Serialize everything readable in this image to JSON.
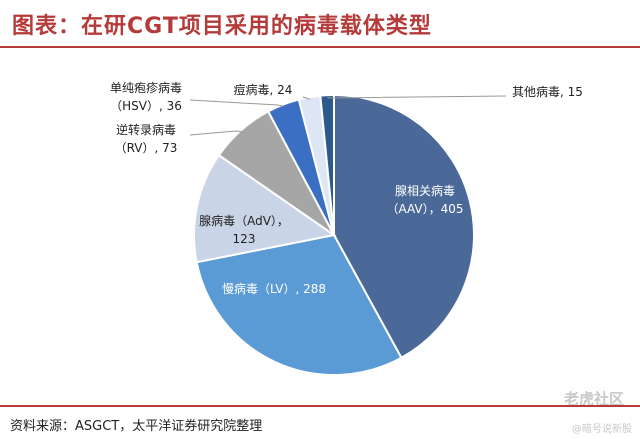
{
  "title": "图表：在研CGT项目采用的病毒载体类型",
  "source": "资料来源：ASGCT，太平洋证券研究院整理",
  "watermark": "老虎社区",
  "watermark_sub": "@暗号说新股",
  "chart_data": {
    "type": "pie",
    "title": "图表：在研CGT项目采用的病毒载体类型",
    "start": "12 o'clock, clockwise",
    "slices": [
      {
        "label": "腺相关病毒（AAV），405",
        "value": 405,
        "color": "#4a6898",
        "label_color": "#ffffff",
        "label_lines": [
          "腺相关病毒",
          "（AAV），405"
        ]
      },
      {
        "label": "慢病毒（LV）, 288",
        "value": 288,
        "color": "#5b9bd5",
        "label_color": "#ffffff",
        "label_lines": [
          "慢病毒（LV）, 288"
        ]
      },
      {
        "label": "腺病毒（AdV），123",
        "value": 123,
        "color": "#c9d4e6",
        "label_color": "#222222",
        "label_lines": [
          "腺病毒（AdV），",
          "123"
        ]
      },
      {
        "label": "逆转录病毒（RV）, 73",
        "value": 73,
        "color": "#a6a6a6",
        "label_color": "#222222",
        "label_lines": [
          "逆转录病毒",
          "（RV）, 73"
        ]
      },
      {
        "label": "单纯疱疹病毒（HSV）, 36",
        "value": 36,
        "color": "#3a6fc4",
        "label_color": "#222222",
        "label_lines": [
          "单纯疱疹病毒",
          "（HSV）, 36"
        ]
      },
      {
        "label": "痘病毒, 24",
        "value": 24,
        "color": "#dde6f4",
        "label_color": "#222222",
        "label_lines": [
          "痘病毒, 24"
        ]
      },
      {
        "label": "其他病毒, 15",
        "value": 15,
        "color": "#2d5a8e",
        "label_color": "#222222",
        "label_lines": [
          "其他病毒, 15"
        ]
      }
    ]
  }
}
